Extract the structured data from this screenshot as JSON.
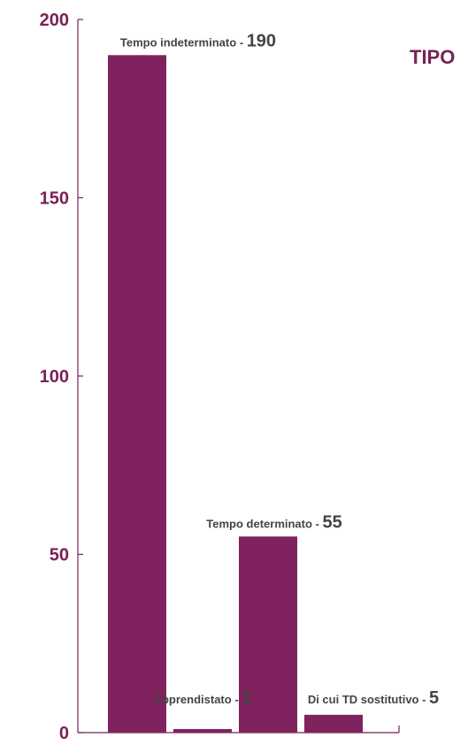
{
  "chart_data": {
    "type": "bar",
    "title": "TIPO",
    "categories": [
      "Tempo indeterminato",
      "Apprendistato",
      "Tempo determinato",
      "Di cui TD sostitutivo"
    ],
    "values": [
      190,
      1,
      55,
      5
    ],
    "ylim": [
      0,
      200
    ],
    "yticks": [
      0,
      50,
      100,
      150,
      200
    ],
    "grid": false,
    "legend": "none",
    "colors": {
      "bar": "#80225e",
      "axis": "#7a2157",
      "tick_text": "#7a2157",
      "label_text": "#444444",
      "title_text": "#7a2157"
    }
  }
}
